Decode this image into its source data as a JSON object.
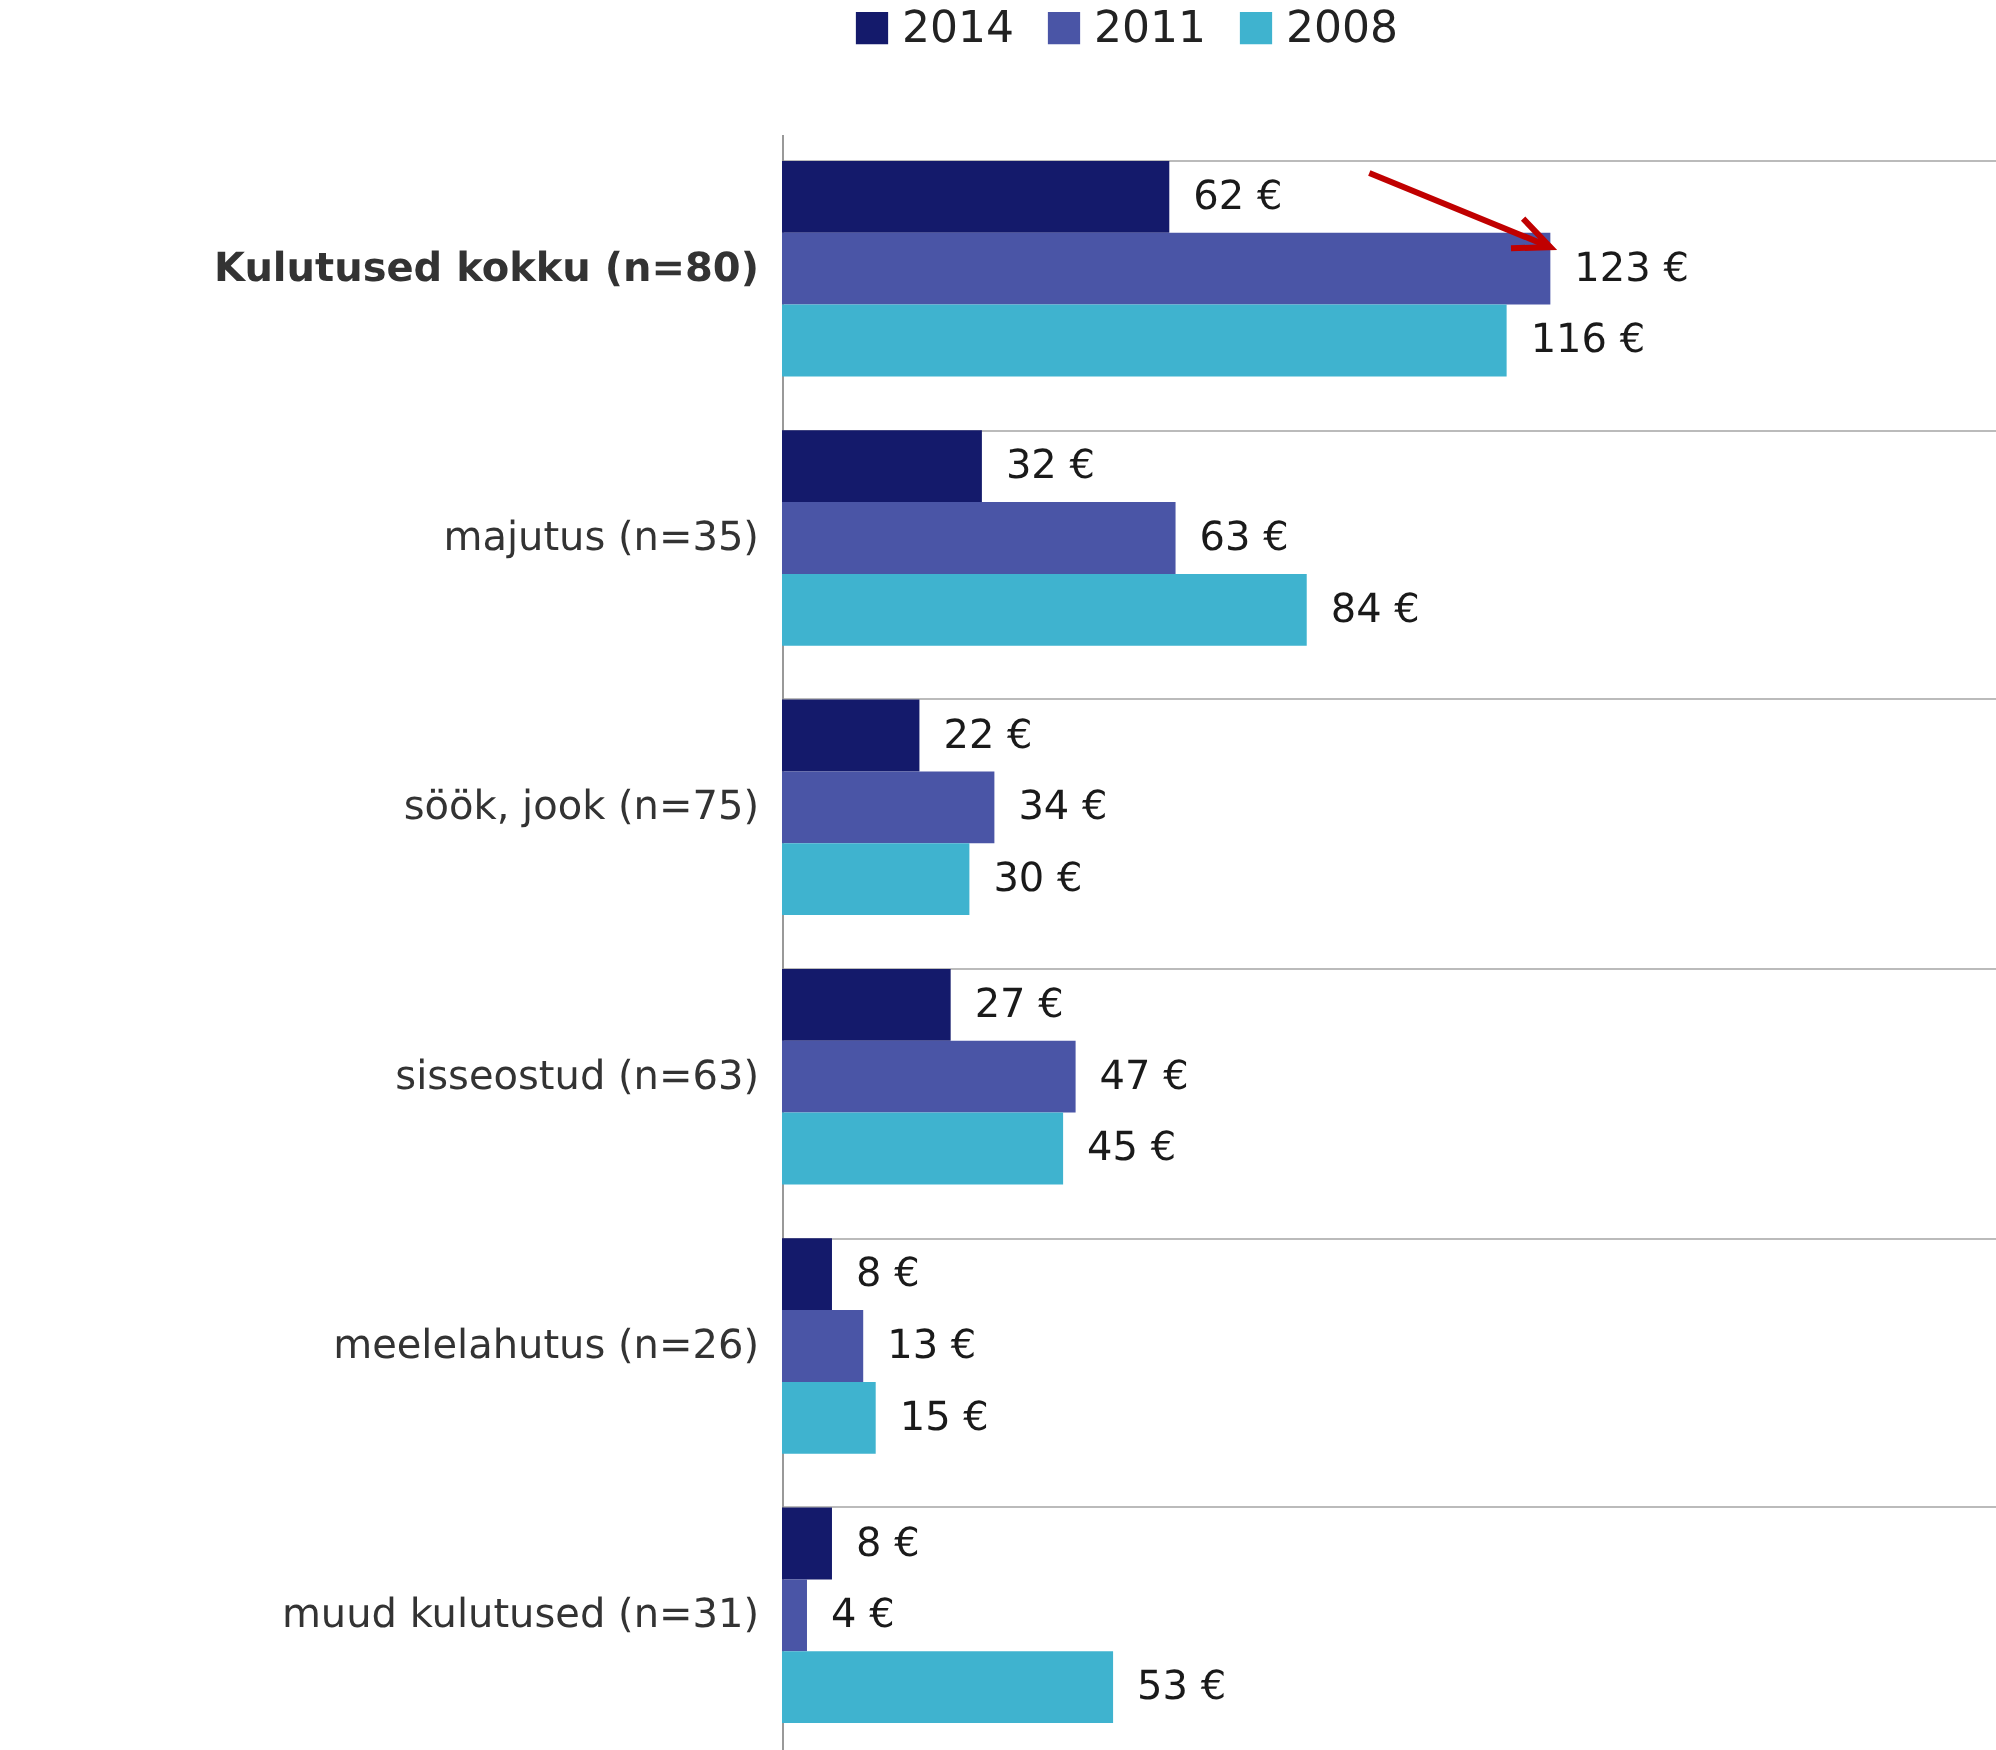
{
  "chart_data": {
    "type": "bar",
    "orientation": "horizontal",
    "categories": [
      "Kulutused kokku (n=80)",
      "majutus (n=35)",
      "söök, jook (n=75)",
      "sisseostud (n=63)",
      "meelelahutus (n=26)",
      "muud kulutused (n=31)"
    ],
    "series": [
      {
        "name": "2014",
        "color": "#141a6b",
        "values": [
          62,
          32,
          22,
          27,
          8,
          8
        ],
        "value_labels": [
          "62 €",
          "32 €",
          "22 €",
          "27 €",
          "8 €",
          "8 €"
        ]
      },
      {
        "name": "2011",
        "color": "#4a55a6",
        "values": [
          123,
          63,
          34,
          47,
          13,
          4
        ],
        "value_labels": [
          "123 €",
          "63 €",
          "34 €",
          "47 €",
          "13 €",
          "4 €"
        ]
      },
      {
        "name": "2008",
        "color": "#3fb3cf",
        "values": [
          116,
          84,
          30,
          45,
          15,
          53
        ],
        "value_labels": [
          "116 €",
          "84 €",
          "30 €",
          "45 €",
          "15 €",
          "53 €"
        ]
      }
    ],
    "legend": "top",
    "grid": "y",
    "tick_labels": "y"
  }
}
